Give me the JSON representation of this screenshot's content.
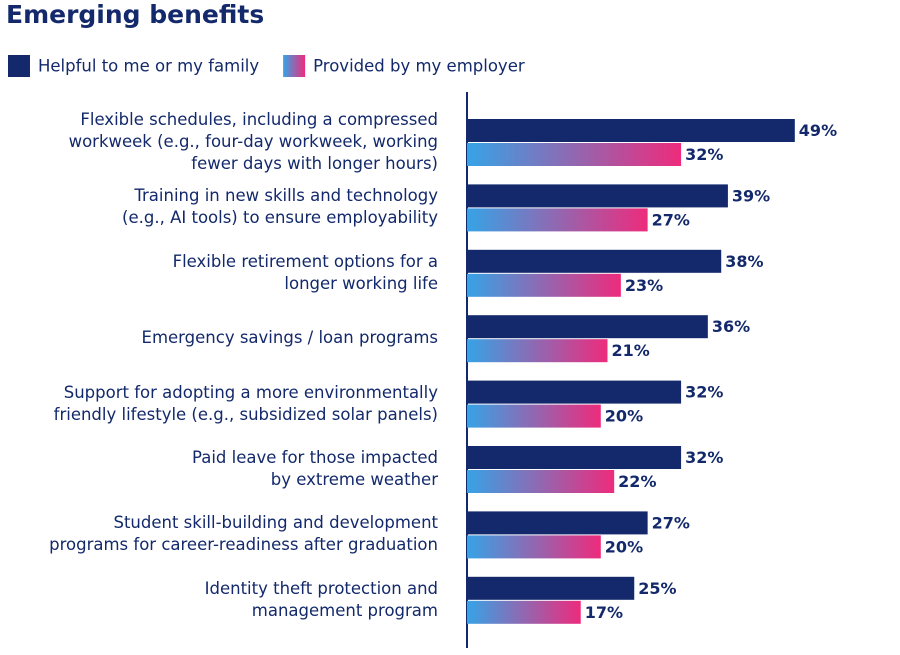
{
  "chart_data": {
    "type": "bar",
    "orientation": "horizontal",
    "title": "Emerging benefits",
    "categories": [
      "Flexible schedules, including a compressed\nworkweek (e.g., four-day workweek, working\nfewer days with longer hours)",
      "Training in new skills and technology\n(e.g., AI tools) to ensure employability",
      "Flexible retirement options for a\nlonger working life",
      "Emergency savings / loan programs",
      "Support for adopting a more environmentally\nfriendly lifestyle (e.g., subsidized solar panels)",
      "Paid leave for those impacted\nby extreme weather",
      "Student skill-building and development\nprograms for career-readiness after graduation",
      "Identity theft protection and\nmanagement program"
    ],
    "series": [
      {
        "name": "Helpful to me or my family",
        "color": "#13296b",
        "values": [
          49,
          39,
          38,
          36,
          32,
          32,
          27,
          25
        ],
        "value_labels": [
          "49%",
          "39%",
          "38%",
          "36%",
          "32%",
          "32%",
          "27%",
          "25%"
        ]
      },
      {
        "name": "Provided by my employer",
        "gradient": [
          "#36a3e6",
          "#ee2b7c"
        ],
        "values": [
          32,
          27,
          23,
          21,
          20,
          22,
          20,
          17
        ],
        "value_labels": [
          "32%",
          "27%",
          "23%",
          "21%",
          "20%",
          "22%",
          "20%",
          "17%"
        ]
      }
    ]
  }
}
